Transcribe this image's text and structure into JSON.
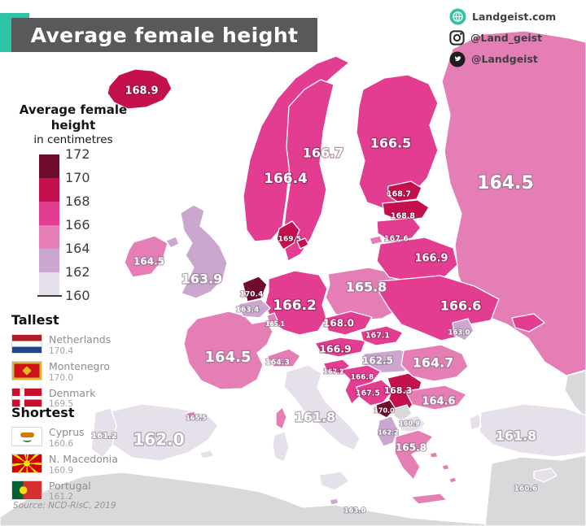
{
  "title": "Average female height",
  "social": [
    {
      "icon": "globe-icon",
      "label": "Landgeist.com"
    },
    {
      "icon": "instagram-icon",
      "label": "@Land_geist"
    },
    {
      "icon": "twitter-icon",
      "label": "@Landgeist"
    }
  ],
  "legend": {
    "title_line1": "Average female",
    "title_line2": "height",
    "subtitle": "in centimetres",
    "ticks": [
      "172",
      "170",
      "168",
      "166",
      "164",
      "162",
      "160"
    ],
    "colors": [
      "#6f0b2d",
      "#c4104e",
      "#e33d92",
      "#e57eb5",
      "#cba7cf",
      "#e5e0ea"
    ],
    "no_data_color": "#d9d9dc"
  },
  "tallest": {
    "heading": "Tallest",
    "items": [
      {
        "country": "Netherlands",
        "value": "170.4",
        "flag": "nl"
      },
      {
        "country": "Montenegro",
        "value": "170.0",
        "flag": "me"
      },
      {
        "country": "Denmark",
        "value": "169.5",
        "flag": "dk"
      }
    ]
  },
  "shortest": {
    "heading": "Shortest",
    "items": [
      {
        "country": "Cyprus",
        "value": "160.6",
        "flag": "cy"
      },
      {
        "country": "N. Macedonia",
        "value": "160.9",
        "flag": "mk"
      },
      {
        "country": "Portugal",
        "value": "161.2",
        "flag": "pt"
      }
    ]
  },
  "source": "Source: NCD-RisC, 2019",
  "map": {
    "units": "cm",
    "countries": [
      {
        "id": "north_africa",
        "name": "North Africa",
        "value": null,
        "bucket": null
      },
      {
        "id": "middle_east",
        "name": "Middle East",
        "value": null,
        "bucket": null
      },
      {
        "id": "caucasus",
        "name": "Caucasus",
        "value": null,
        "bucket": null
      },
      {
        "id": "russia",
        "name": "Russia",
        "value": "164.5",
        "bucket": 3
      },
      {
        "id": "norway",
        "name": "Norway",
        "value": "166.4",
        "bucket": 2
      },
      {
        "id": "sweden",
        "name": "Sweden",
        "value": "166.7",
        "bucket": 2
      },
      {
        "id": "finland",
        "name": "Finland",
        "value": "166.5",
        "bucket": 2
      },
      {
        "id": "iceland",
        "name": "Iceland",
        "value": "168.9",
        "bucket": 1
      },
      {
        "id": "ireland",
        "name": "Ireland",
        "value": "164.5",
        "bucket": 3
      },
      {
        "id": "uk",
        "name": "United Kingdom",
        "value": "163.9",
        "bucket": 4
      },
      {
        "id": "france",
        "name": "France",
        "value": "164.5",
        "bucket": 3
      },
      {
        "id": "corsica",
        "name": "Corsica (France)",
        "value": null,
        "bucket": 3
      },
      {
        "id": "spain",
        "name": "Spain",
        "value": "162.0",
        "bucket": 5
      },
      {
        "id": "portugal",
        "name": "Portugal",
        "value": "161.2",
        "bucket": 5
      },
      {
        "id": "andorra",
        "name": "Andorra",
        "value": "165.5",
        "bucket": 3
      },
      {
        "id": "italy",
        "name": "Italy",
        "value": "161.8",
        "bucket": 5
      },
      {
        "id": "germany",
        "name": "Germany",
        "value": "166.2",
        "bucket": 2
      },
      {
        "id": "denmark",
        "name": "Denmark",
        "value": "169.5",
        "bucket": 1
      },
      {
        "id": "poland",
        "name": "Poland",
        "value": "165.8",
        "bucket": 3
      },
      {
        "id": "czechia",
        "name": "Czechia",
        "value": "168.0",
        "bucket": 2
      },
      {
        "id": "austria",
        "name": "Austria",
        "value": "166.9",
        "bucket": 2
      },
      {
        "id": "switzerland",
        "name": "Switzerland",
        "value": "164.3",
        "bucket": 3
      },
      {
        "id": "belgium",
        "name": "Belgium",
        "value": "163.4",
        "bucket": 4
      },
      {
        "id": "netherlands",
        "name": "Netherlands",
        "value": "170.4",
        "bucket": 0
      },
      {
        "id": "luxembourg",
        "name": "Luxembourg",
        "value": "165.1",
        "bucket": 3
      },
      {
        "id": "estonia",
        "name": "Estonia",
        "value": "168.7",
        "bucket": 1
      },
      {
        "id": "latvia",
        "name": "Latvia",
        "value": "168.8",
        "bucket": 1
      },
      {
        "id": "lithuania",
        "name": "Lithuania",
        "value": "167.6",
        "bucket": 2
      },
      {
        "id": "belarus",
        "name": "Belarus",
        "value": "166.9",
        "bucket": 2
      },
      {
        "id": "ukraine",
        "name": "Ukraine",
        "value": "166.6",
        "bucket": 2
      },
      {
        "id": "moldova",
        "name": "Moldova",
        "value": "163.0",
        "bucket": 4
      },
      {
        "id": "slovakia",
        "name": "Slovakia",
        "value": "167.1",
        "bucket": 2
      },
      {
        "id": "hungary",
        "name": "Hungary",
        "value": "162.5",
        "bucket": 4
      },
      {
        "id": "slovenia",
        "name": "Slovenia",
        "value": "167.2",
        "bucket": 2
      },
      {
        "id": "croatia",
        "name": "Croatia",
        "value": "166.8",
        "bucket": 2
      },
      {
        "id": "bosnia",
        "name": "Bosnia and Herzegovina",
        "value": "167.5",
        "bucket": 2
      },
      {
        "id": "serbia",
        "name": "Serbia",
        "value": "168.3",
        "bucket": 1
      },
      {
        "id": "montenegro",
        "name": "Montenegro",
        "value": "170.0",
        "bucket": 0
      },
      {
        "id": "kosovo",
        "name": "Kosovo",
        "value": null,
        "bucket": null
      },
      {
        "id": "n_macedonia",
        "name": "N. Macedonia",
        "value": "160.9",
        "bucket": 5
      },
      {
        "id": "albania",
        "name": "Albania",
        "value": "162.2",
        "bucket": 4
      },
      {
        "id": "romania",
        "name": "Romania",
        "value": "164.7",
        "bucket": 3
      },
      {
        "id": "bulgaria",
        "name": "Bulgaria",
        "value": "164.6",
        "bucket": 3
      },
      {
        "id": "greece",
        "name": "Greece",
        "value": "165.8",
        "bucket": 3
      },
      {
        "id": "turkey",
        "name": "Turkey",
        "value": "161.8",
        "bucket": 5
      },
      {
        "id": "cyprus",
        "name": "Cyprus",
        "value": "160.6",
        "bucket": 5
      },
      {
        "id": "malta",
        "name": "Malta",
        "value": "163.0",
        "bucket": 4
      }
    ]
  }
}
